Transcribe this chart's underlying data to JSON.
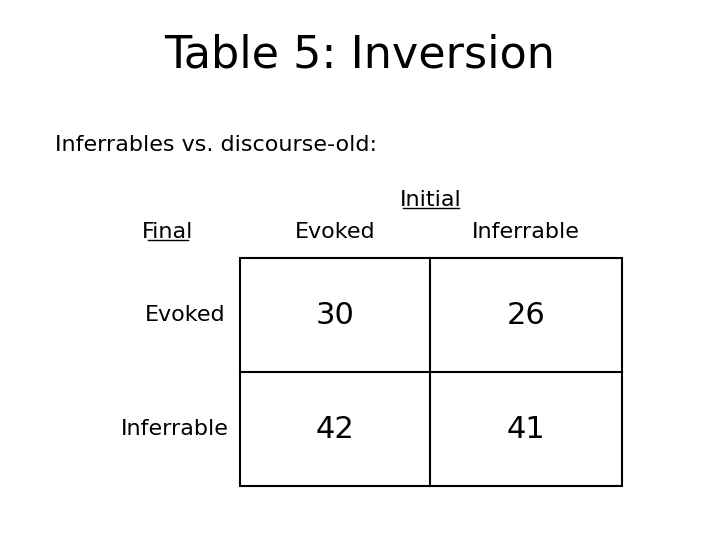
{
  "title": "Table 5: Inversion",
  "subtitle": "Inferrables vs. discourse-old:",
  "col_header_label": "Initial",
  "row_header_label": "Final",
  "col_headers": [
    "Evoked",
    "Inferrable"
  ],
  "row_headers": [
    "Evoked",
    "Inferrable"
  ],
  "values": [
    [
      30,
      26
    ],
    [
      42,
      41
    ]
  ],
  "bg_color": "#ffffff",
  "text_color": "#000000",
  "title_fontsize": 32,
  "subtitle_fontsize": 16,
  "header_fontsize": 16,
  "cell_fontsize": 22
}
